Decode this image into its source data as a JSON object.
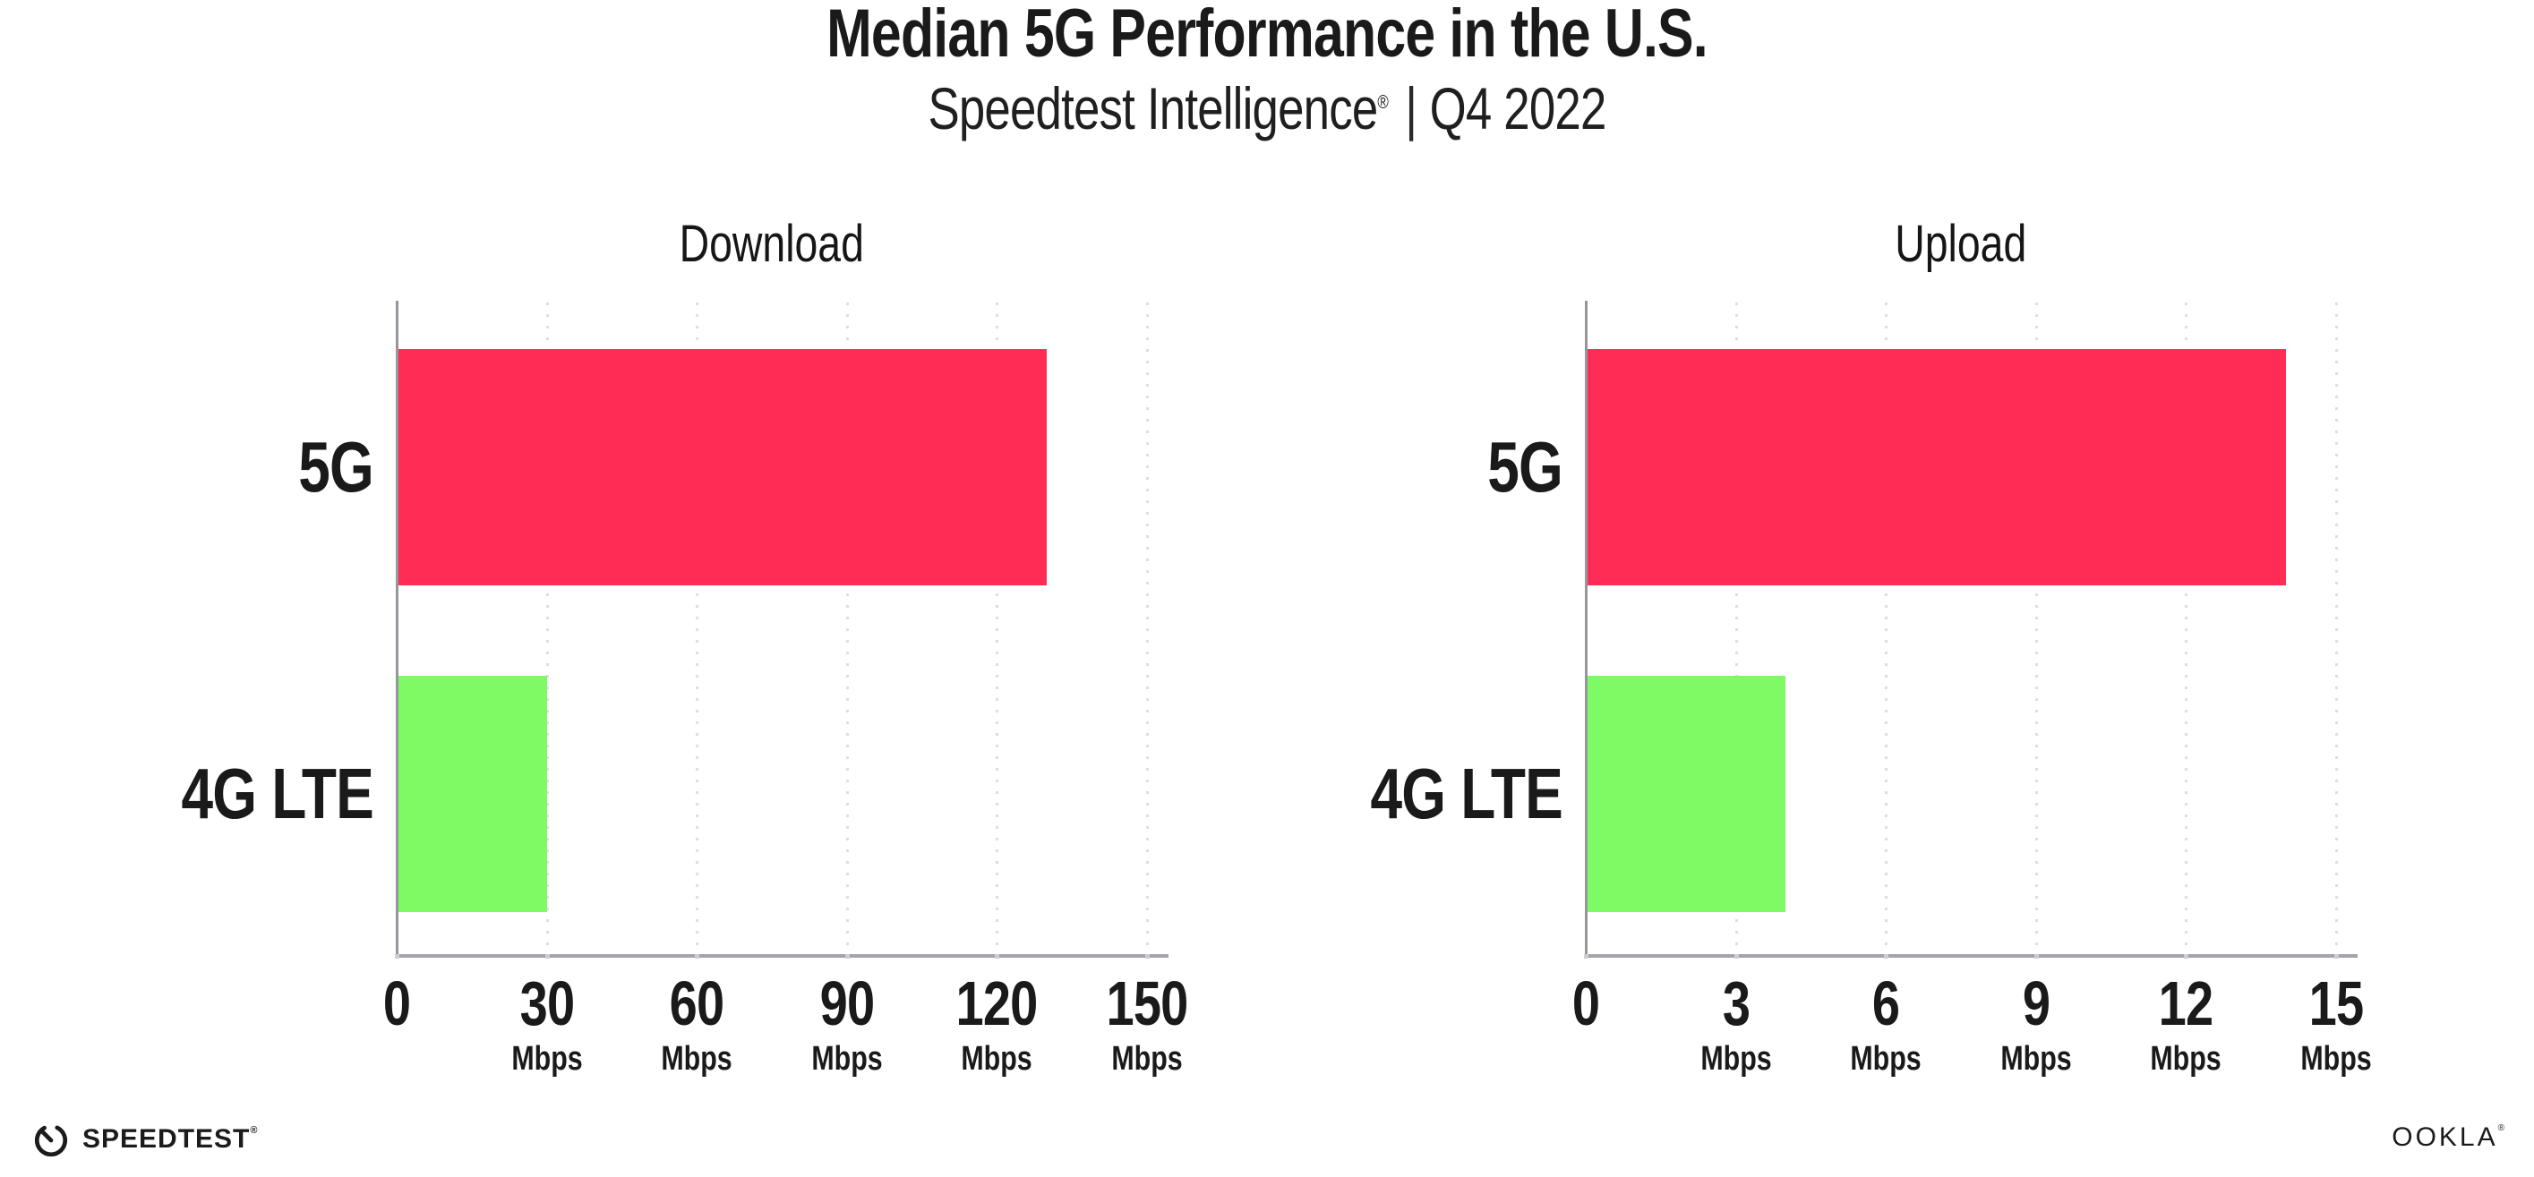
{
  "header": {
    "title": "Median 5G Performance in the U.S.",
    "subtitle_brand": "Speedtest Intelligence",
    "subtitle_reg": "®",
    "subtitle_sep": "|",
    "subtitle_period": "Q4 2022"
  },
  "chart_data": [
    {
      "type": "bar",
      "orientation": "horizontal",
      "title": "Download",
      "categories": [
        "5G",
        "4G LTE"
      ],
      "values": [
        130,
        30
      ],
      "unit": "Mbps",
      "xlim": [
        0,
        150
      ],
      "xticks": [
        0,
        30,
        60,
        90,
        120,
        150
      ],
      "grid": "vertical-dotted",
      "bar_colors": [
        "#FF2D55",
        "#7DFA64"
      ]
    },
    {
      "type": "bar",
      "orientation": "horizontal",
      "title": "Upload",
      "categories": [
        "5G",
        "4G LTE"
      ],
      "values": [
        14,
        4
      ],
      "unit": "Mbps",
      "xlim": [
        0,
        15
      ],
      "xticks": [
        0,
        3,
        6,
        9,
        12,
        15
      ],
      "grid": "vertical-dotted",
      "bar_colors": [
        "#FF2D55",
        "#7DFA64"
      ]
    }
  ],
  "colors": {
    "bar_5g": "#FF2D55",
    "bar_4g_lte": "#7DFA64",
    "axis": "#A4A4AA",
    "gridline": "#DDDDE5",
    "text": "#1A1A1A",
    "background": "#FFFFFF"
  },
  "footer": {
    "speedtest_label": "SPEEDTEST",
    "speedtest_reg": "®",
    "ookla_label": "OOKLA",
    "ookla_reg": "®"
  }
}
